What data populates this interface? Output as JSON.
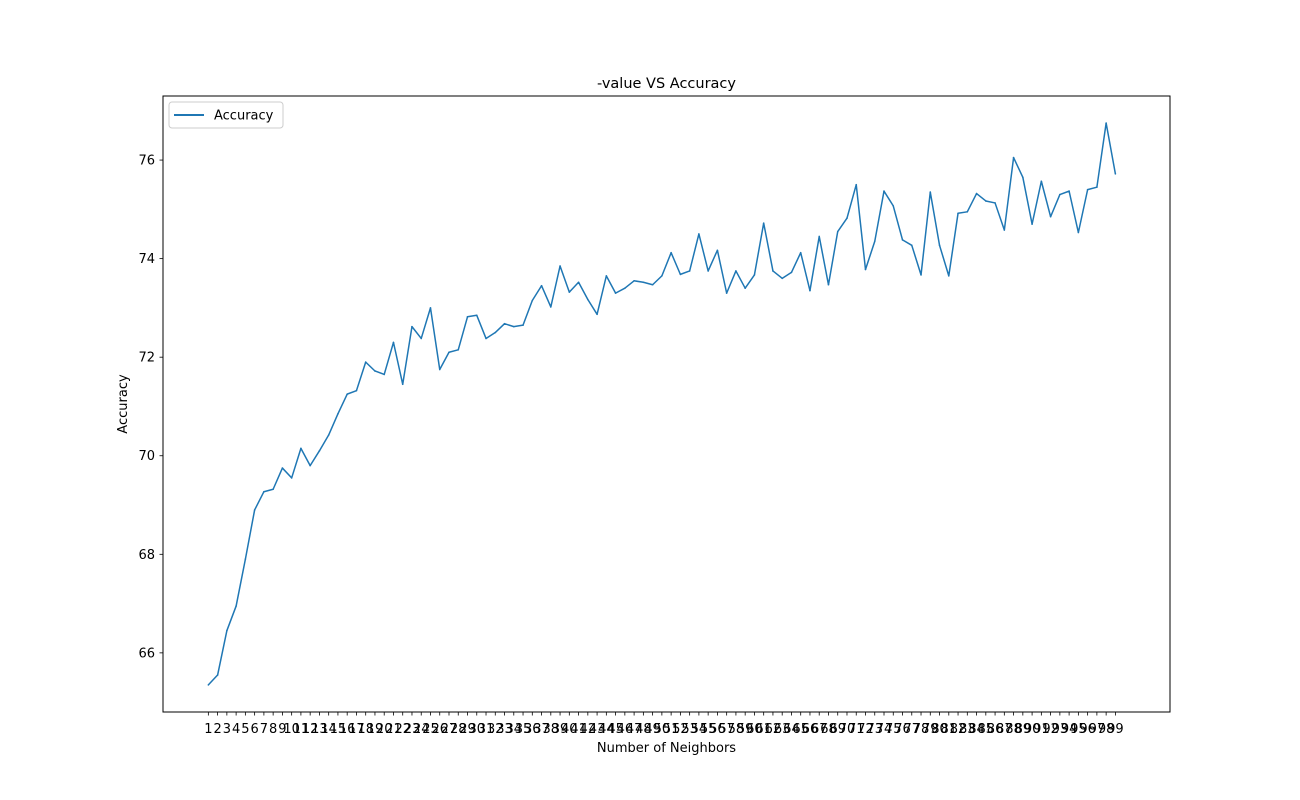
{
  "chart_data": {
    "type": "line",
    "title": "-value VS Accuracy",
    "xlabel": "Number of Neighbors",
    "ylabel": "Accuracy",
    "x": [
      1,
      2,
      3,
      4,
      5,
      6,
      7,
      8,
      9,
      10,
      11,
      12,
      13,
      14,
      15,
      16,
      17,
      18,
      19,
      20,
      21,
      22,
      23,
      24,
      25,
      26,
      27,
      28,
      29,
      30,
      31,
      32,
      33,
      34,
      35,
      36,
      37,
      38,
      39,
      40,
      41,
      42,
      43,
      44,
      45,
      46,
      47,
      48,
      49,
      50,
      51,
      52,
      53,
      54,
      55,
      56,
      57,
      58,
      59,
      60,
      61,
      62,
      63,
      64,
      65,
      66,
      67,
      68,
      69,
      70,
      71,
      72,
      73,
      74,
      75,
      76,
      77,
      78,
      79,
      80,
      81,
      82,
      83,
      84,
      85,
      86,
      87,
      88,
      89,
      90,
      91,
      92,
      93,
      94,
      95,
      96,
      97,
      98,
      99
    ],
    "xticks": [
      "1",
      "2",
      "3",
      "4",
      "5",
      "6",
      "7",
      "8",
      "9",
      "10",
      "11",
      "12",
      "13",
      "14",
      "15",
      "16",
      "17",
      "18",
      "19",
      "20",
      "21",
      "22",
      "23",
      "24",
      "25",
      "26",
      "27",
      "28",
      "29",
      "30",
      "31",
      "32",
      "33",
      "34",
      "35",
      "36",
      "37",
      "38",
      "39",
      "40",
      "41",
      "42",
      "43",
      "44",
      "45",
      "46",
      "47",
      "48",
      "49",
      "50",
      "51",
      "52",
      "53",
      "54",
      "55",
      "56",
      "57",
      "58",
      "59",
      "60",
      "61",
      "62",
      "63",
      "64",
      "65",
      "66",
      "67",
      "68",
      "69",
      "70",
      "71",
      "72",
      "73",
      "74",
      "75",
      "76",
      "77",
      "78",
      "79",
      "80",
      "81",
      "82",
      "83",
      "84",
      "85",
      "86",
      "87",
      "88",
      "89",
      "90",
      "91",
      "92",
      "93",
      "94",
      "95",
      "96",
      "97",
      "98",
      "99"
    ],
    "xlim": [
      -3.9,
      104.9
    ],
    "ylim": [
      64.8,
      77.3
    ],
    "yticks": [
      66,
      68,
      70,
      72,
      74,
      76
    ],
    "ytick_labels": [
      "66",
      "68",
      "70",
      "72",
      "74",
      "76"
    ],
    "series": [
      {
        "name": "Accuracy",
        "color": "#1f77b4",
        "values": [
          65.35,
          65.55,
          66.45,
          66.95,
          67.9,
          68.9,
          69.27,
          69.32,
          69.75,
          69.55,
          70.15,
          69.8,
          70.1,
          70.42,
          70.85,
          71.25,
          71.32,
          71.9,
          71.72,
          71.65,
          72.3,
          71.45,
          72.62,
          72.38,
          73.0,
          71.75,
          72.1,
          72.15,
          72.82,
          72.85,
          72.38,
          72.5,
          72.68,
          72.62,
          72.65,
          73.15,
          73.45,
          73.02,
          73.85,
          73.32,
          73.52,
          73.17,
          72.87,
          73.65,
          73.3,
          73.4,
          73.55,
          73.52,
          73.47,
          73.65,
          74.12,
          73.68,
          73.75,
          74.5,
          73.75,
          74.17,
          73.3,
          73.75,
          73.4,
          73.67,
          74.72,
          73.75,
          73.6,
          73.72,
          74.12,
          73.35,
          74.45,
          73.47,
          74.55,
          74.82,
          75.5,
          73.78,
          74.35,
          75.37,
          75.07,
          74.38,
          74.27,
          73.67,
          75.35,
          74.27,
          73.65,
          74.92,
          74.95,
          75.32,
          75.17,
          75.13,
          74.58,
          76.05,
          75.65,
          74.7,
          75.57,
          74.85,
          75.3,
          75.37,
          74.53,
          75.4,
          75.45,
          76.75,
          75.72
        ]
      }
    ],
    "legend": {
      "position": "upper-left",
      "entries": [
        "Accuracy"
      ]
    },
    "grid": false
  }
}
